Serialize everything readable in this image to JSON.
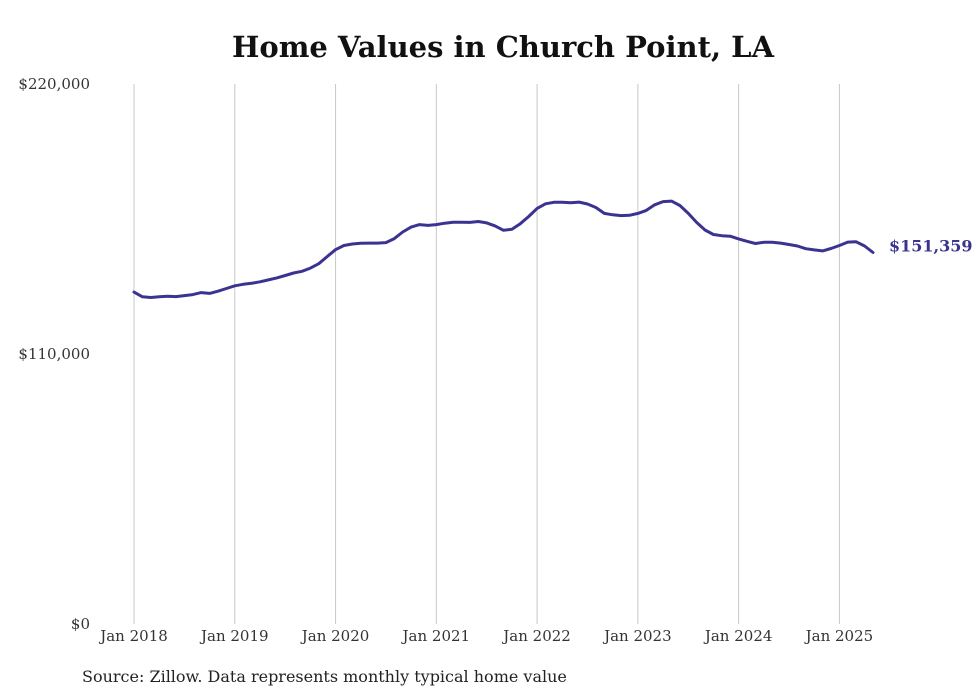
{
  "chart_data": {
    "type": "line",
    "title": "Home Values in Church Point, LA",
    "xlabel": "",
    "ylabel": "",
    "source": "Source: Zillow. Data represents monthly typical home value",
    "yticks": [
      {
        "value": 220000,
        "label": "$220,000"
      },
      {
        "value": 110000,
        "label": "$110,000"
      },
      {
        "value": 0,
        "label": "$0"
      }
    ],
    "xticks": [
      {
        "value": "2018-01",
        "label": "Jan 2018"
      },
      {
        "value": "2019-01",
        "label": "Jan 2019"
      },
      {
        "value": "2020-01",
        "label": "Jan 2020"
      },
      {
        "value": "2021-01",
        "label": "Jan 2021"
      },
      {
        "value": "2022-01",
        "label": "Jan 2022"
      },
      {
        "value": "2023-01",
        "label": "Jan 2023"
      },
      {
        "value": "2024-01",
        "label": "Jan 2024"
      },
      {
        "value": "2025-01",
        "label": "Jan 2025"
      }
    ],
    "ylim": [
      0,
      220000
    ],
    "xlim": [
      "2018-01",
      "2025-05"
    ],
    "grid": "vertical",
    "line_color": "#3a3391",
    "end_label": "$151,359",
    "series": [
      {
        "x": [
          "2018-01",
          "2018-02",
          "2018-03",
          "2018-04",
          "2018-05",
          "2018-06",
          "2018-07",
          "2018-08",
          "2018-09",
          "2018-10",
          "2018-11",
          "2018-12",
          "2019-01",
          "2019-02",
          "2019-03",
          "2019-04",
          "2019-05",
          "2019-06",
          "2019-07",
          "2019-08",
          "2019-09",
          "2019-10",
          "2019-11",
          "2019-12",
          "2020-01",
          "2020-02",
          "2020-03",
          "2020-04",
          "2020-05",
          "2020-06",
          "2020-07",
          "2020-08",
          "2020-09",
          "2020-10",
          "2020-11",
          "2020-12",
          "2021-01",
          "2021-02",
          "2021-03",
          "2021-04",
          "2021-05",
          "2021-06",
          "2021-07",
          "2021-08",
          "2021-09",
          "2021-10",
          "2021-11",
          "2021-12",
          "2022-01",
          "2022-02",
          "2022-03",
          "2022-04",
          "2022-05",
          "2022-06",
          "2022-07",
          "2022-08",
          "2022-09",
          "2022-10",
          "2022-11",
          "2022-12",
          "2023-01",
          "2023-02",
          "2023-03",
          "2023-04",
          "2023-05",
          "2023-06",
          "2023-07",
          "2023-08",
          "2023-09",
          "2023-10",
          "2023-11",
          "2023-12",
          "2024-01",
          "2024-02",
          "2024-03",
          "2024-04",
          "2024-05",
          "2024-06",
          "2024-07",
          "2024-08",
          "2024-09",
          "2024-10",
          "2024-11",
          "2024-12",
          "2025-01",
          "2025-02",
          "2025-03",
          "2025-04",
          "2025-05"
        ],
        "values": [
          135200,
          133300,
          133000,
          133300,
          133500,
          133400,
          133800,
          134200,
          135000,
          134700,
          135600,
          136700,
          137800,
          138400,
          138800,
          139400,
          140200,
          141000,
          142000,
          143000,
          143700,
          145000,
          146800,
          149700,
          152500,
          154200,
          154800,
          155100,
          155200,
          155200,
          155400,
          157000,
          159700,
          161700,
          162700,
          162400,
          162700,
          163300,
          163700,
          163700,
          163600,
          164000,
          163400,
          162200,
          160400,
          160800,
          163100,
          166000,
          169300,
          171200,
          171800,
          171800,
          171600,
          171900,
          171100,
          169700,
          167300,
          166700,
          166400,
          166500,
          167300,
          168500,
          170800,
          172100,
          172300,
          170500,
          167300,
          163600,
          160500,
          158700,
          158200,
          158000,
          156900,
          155900,
          155000,
          155500,
          155500,
          155200,
          154600,
          154000,
          152900,
          152400,
          152000,
          153000,
          154200,
          155600,
          155700,
          154000,
          151359
        ]
      }
    ]
  }
}
